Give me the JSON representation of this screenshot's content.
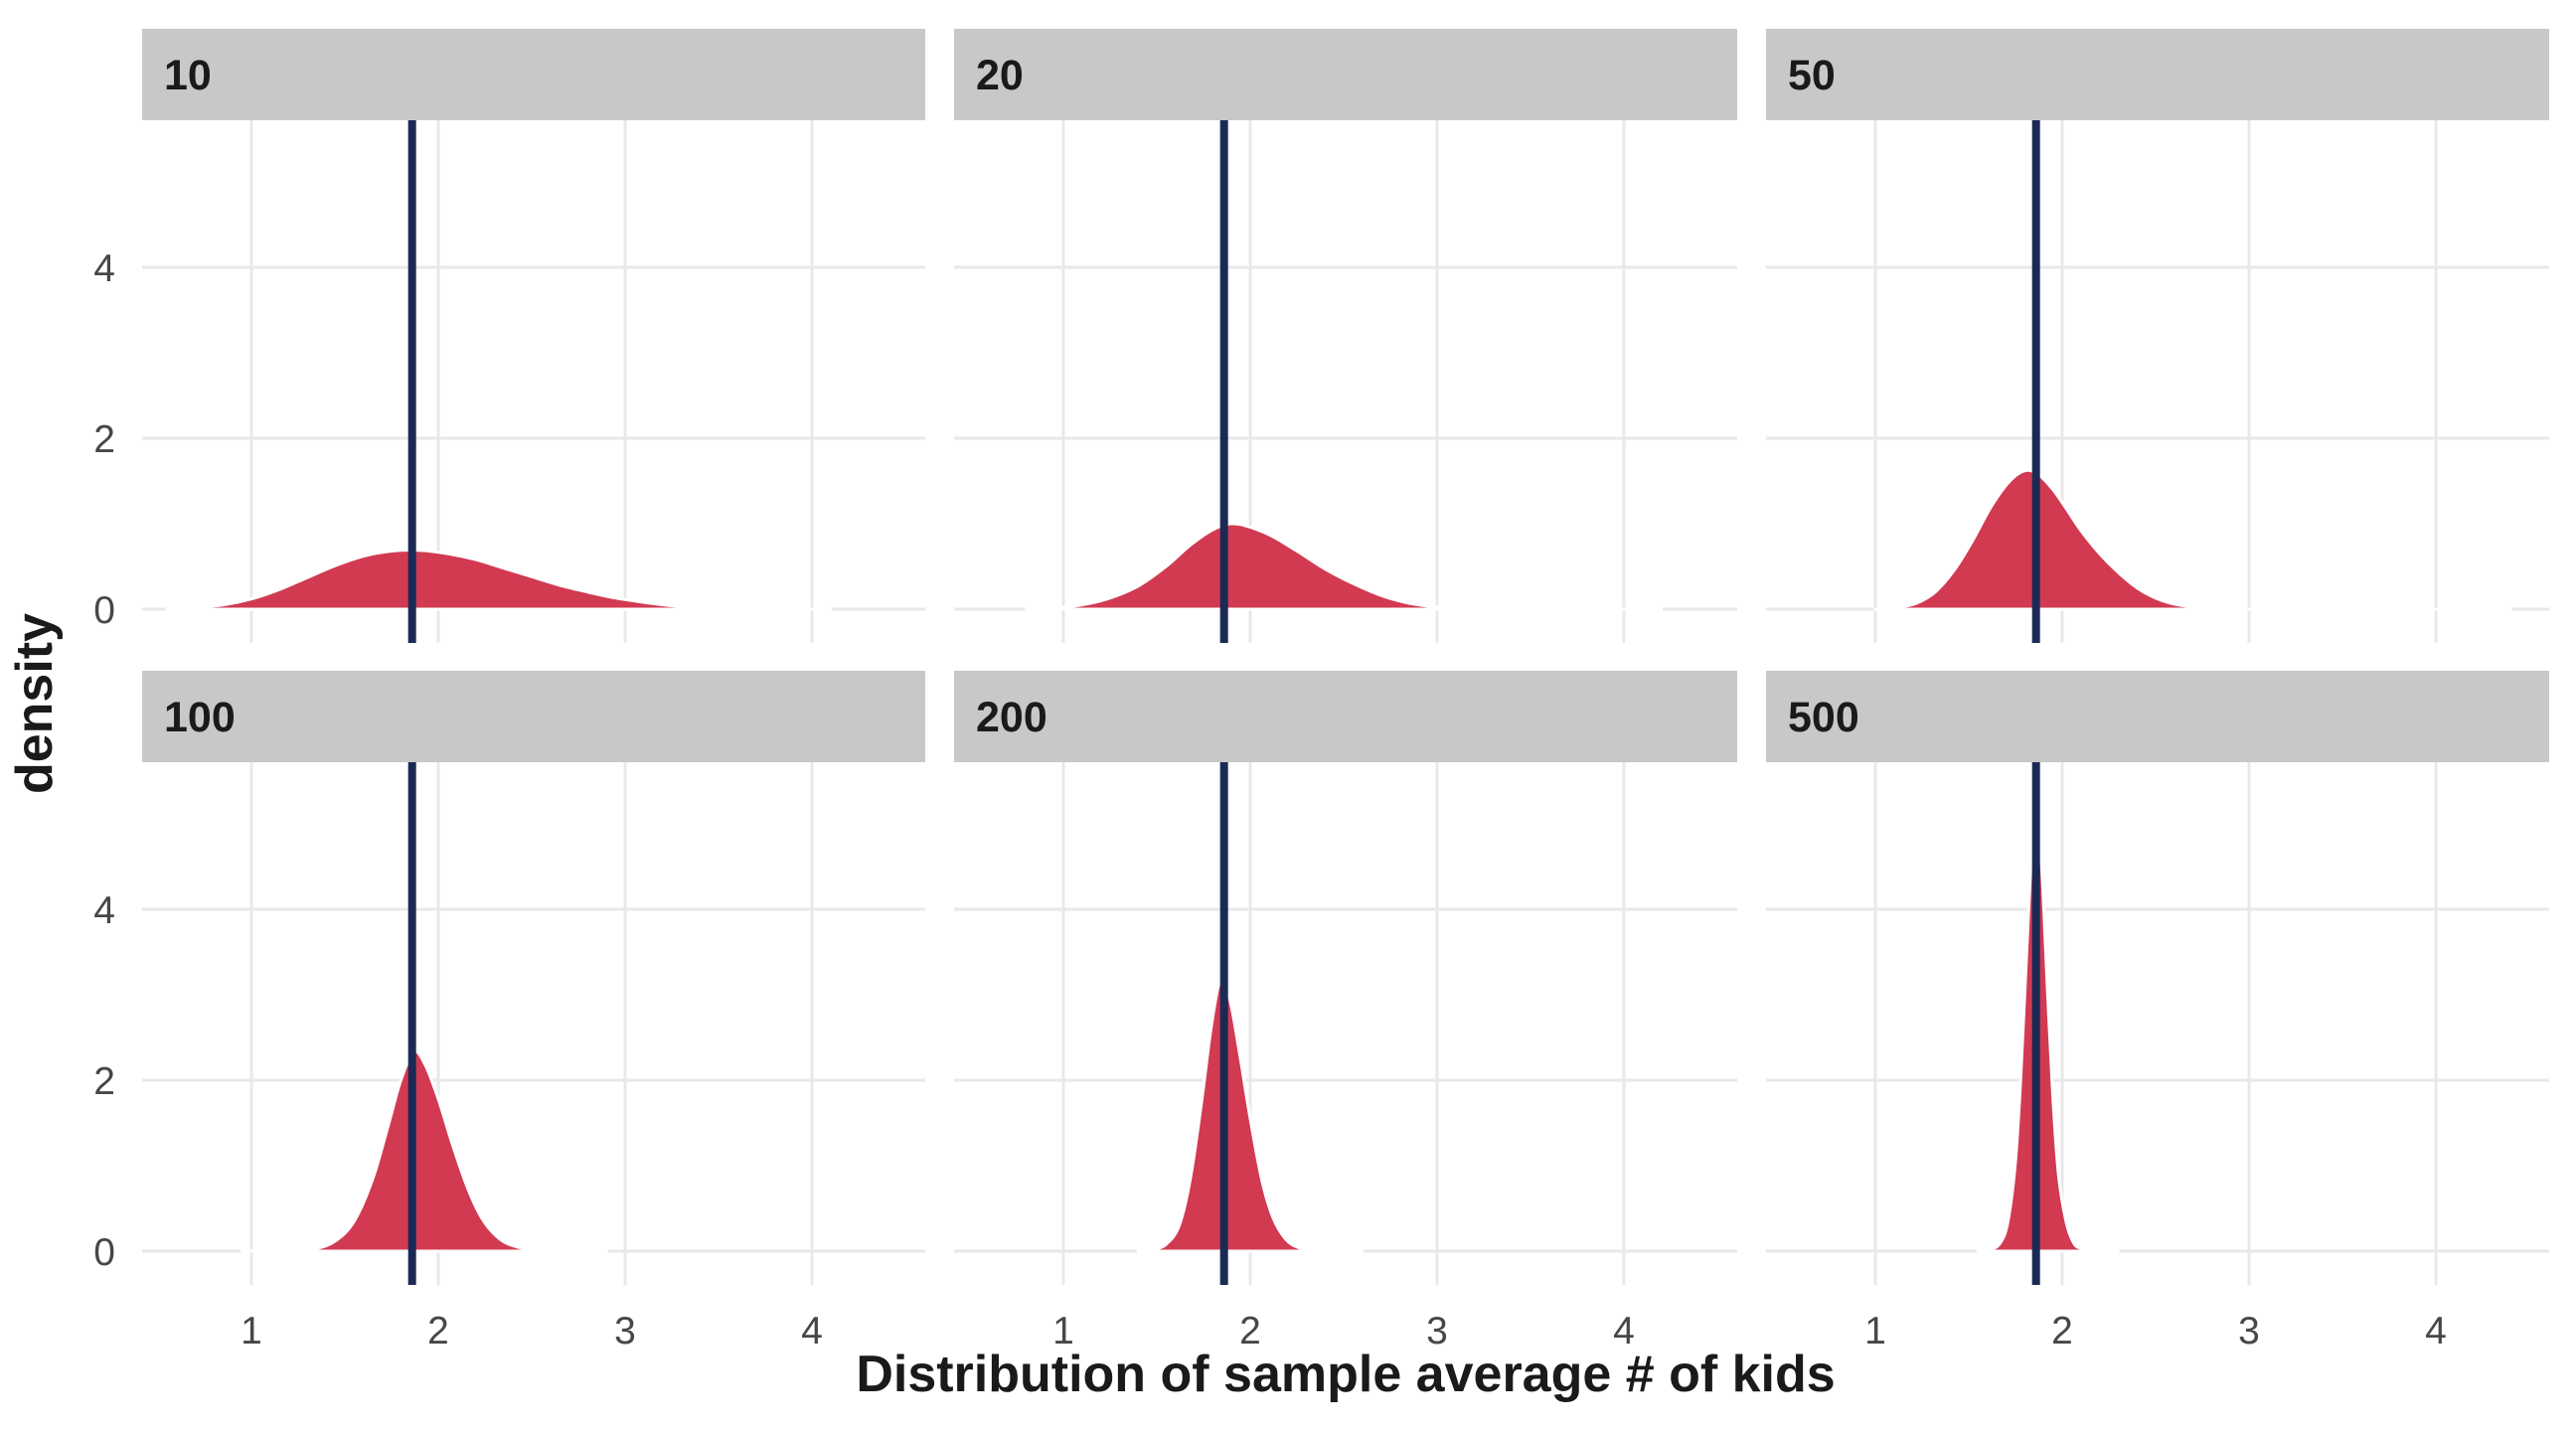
{
  "chart_data": {
    "type": "area",
    "subtype": "faceted kernel density plot, 2 rows x 3 columns, shared axes",
    "xlabel": "Distribution of sample average # of kids",
    "ylabel": "density",
    "x_ticks": [
      1,
      2,
      3,
      4
    ],
    "y_ticks": [
      0,
      2,
      4
    ],
    "x_range_display": [
      0.41,
      4.6
    ],
    "y_range_display": [
      0,
      5.7
    ],
    "grid": "major gridlines only, light gray on white panel",
    "legend": "none",
    "facet_labels": [
      "10",
      "20",
      "50",
      "100",
      "200",
      "500"
    ],
    "vline_x": 1.86,
    "facets": [
      {
        "label": "10",
        "peak_density": 0.69,
        "points": [
          [
            0.55,
            0
          ],
          [
            0.7,
            0.02
          ],
          [
            0.85,
            0.05
          ],
          [
            1.0,
            0.12
          ],
          [
            1.15,
            0.23
          ],
          [
            1.3,
            0.37
          ],
          [
            1.45,
            0.51
          ],
          [
            1.6,
            0.62
          ],
          [
            1.75,
            0.68
          ],
          [
            1.9,
            0.69
          ],
          [
            2.05,
            0.65
          ],
          [
            2.2,
            0.58
          ],
          [
            2.35,
            0.48
          ],
          [
            2.5,
            0.38
          ],
          [
            2.65,
            0.28
          ],
          [
            2.8,
            0.2
          ],
          [
            2.95,
            0.13
          ],
          [
            3.1,
            0.08
          ],
          [
            3.25,
            0.04
          ],
          [
            3.45,
            0.02
          ],
          [
            3.65,
            0.01
          ],
          [
            3.85,
            0
          ],
          [
            4.1,
            0
          ]
        ]
      },
      {
        "label": "20",
        "peak_density": 1.0,
        "points": [
          [
            0.8,
            0
          ],
          [
            0.95,
            0.01
          ],
          [
            1.1,
            0.05
          ],
          [
            1.25,
            0.13
          ],
          [
            1.4,
            0.27
          ],
          [
            1.55,
            0.5
          ],
          [
            1.68,
            0.75
          ],
          [
            1.8,
            0.93
          ],
          [
            1.9,
            1.0
          ],
          [
            2.0,
            0.96
          ],
          [
            2.12,
            0.85
          ],
          [
            2.25,
            0.68
          ],
          [
            2.4,
            0.47
          ],
          [
            2.55,
            0.3
          ],
          [
            2.7,
            0.16
          ],
          [
            2.85,
            0.07
          ],
          [
            3.0,
            0.025
          ],
          [
            3.15,
            0.01
          ],
          [
            3.3,
            0
          ],
          [
            4.2,
            0
          ]
        ]
      },
      {
        "label": "50",
        "peak_density": 1.63,
        "points": [
          [
            1.0,
            0
          ],
          [
            1.12,
            0.02
          ],
          [
            1.22,
            0.07
          ],
          [
            1.32,
            0.2
          ],
          [
            1.42,
            0.45
          ],
          [
            1.52,
            0.8
          ],
          [
            1.62,
            1.2
          ],
          [
            1.72,
            1.5
          ],
          [
            1.8,
            1.62
          ],
          [
            1.87,
            1.58
          ],
          [
            1.95,
            1.4
          ],
          [
            2.03,
            1.15
          ],
          [
            2.1,
            0.92
          ],
          [
            2.2,
            0.65
          ],
          [
            2.3,
            0.43
          ],
          [
            2.4,
            0.25
          ],
          [
            2.5,
            0.13
          ],
          [
            2.62,
            0.05
          ],
          [
            2.75,
            0.02
          ],
          [
            2.9,
            0
          ],
          [
            4.4,
            0
          ]
        ]
      },
      {
        "label": "100",
        "peak_density": 2.33,
        "points": [
          [
            0.95,
            0
          ],
          [
            1.25,
            0
          ],
          [
            1.35,
            0.03
          ],
          [
            1.45,
            0.12
          ],
          [
            1.55,
            0.35
          ],
          [
            1.65,
            0.85
          ],
          [
            1.73,
            1.45
          ],
          [
            1.8,
            2.0
          ],
          [
            1.87,
            2.33
          ],
          [
            1.93,
            2.18
          ],
          [
            2.0,
            1.78
          ],
          [
            2.08,
            1.22
          ],
          [
            2.16,
            0.72
          ],
          [
            2.24,
            0.36
          ],
          [
            2.33,
            0.14
          ],
          [
            2.42,
            0.05
          ],
          [
            2.52,
            0.01
          ],
          [
            2.65,
            0
          ],
          [
            2.9,
            0
          ]
        ]
      },
      {
        "label": "200",
        "peak_density": 3.17,
        "points": [
          [
            1.4,
            0
          ],
          [
            1.48,
            0.02
          ],
          [
            1.55,
            0.08
          ],
          [
            1.62,
            0.3
          ],
          [
            1.68,
            0.85
          ],
          [
            1.74,
            1.75
          ],
          [
            1.79,
            2.6
          ],
          [
            1.84,
            3.17
          ],
          [
            1.89,
            2.95
          ],
          [
            1.94,
            2.35
          ],
          [
            2.0,
            1.55
          ],
          [
            2.06,
            0.85
          ],
          [
            2.12,
            0.4
          ],
          [
            2.19,
            0.14
          ],
          [
            2.26,
            0.04
          ],
          [
            2.35,
            0.01
          ],
          [
            2.45,
            0
          ],
          [
            2.6,
            0
          ]
        ]
      },
      {
        "label": "500",
        "peak_density": 5.25,
        "points": [
          [
            1.55,
            0
          ],
          [
            1.62,
            0.02
          ],
          [
            1.67,
            0.1
          ],
          [
            1.71,
            0.35
          ],
          [
            1.75,
            1.05
          ],
          [
            1.78,
            2.1
          ],
          [
            1.81,
            3.5
          ],
          [
            1.84,
            4.85
          ],
          [
            1.86,
            5.25
          ],
          [
            1.89,
            4.5
          ],
          [
            1.92,
            3.1
          ],
          [
            1.95,
            1.8
          ],
          [
            1.98,
            0.9
          ],
          [
            2.02,
            0.35
          ],
          [
            2.06,
            0.1
          ],
          [
            2.1,
            0.03
          ],
          [
            2.16,
            0
          ],
          [
            2.3,
            0
          ]
        ]
      }
    ]
  },
  "colors": {
    "density_fill": "#D23A52",
    "density_outline": "#FFFFFF",
    "vline": "#1B2A55",
    "strip_bg": "#C8C8C8",
    "strip_text": "#1A1A1A",
    "grid": "#E8E8E8",
    "tick_text": "#474747",
    "axis_title_text": "#1A1A1A",
    "panel_bg": "#FFFFFF"
  }
}
